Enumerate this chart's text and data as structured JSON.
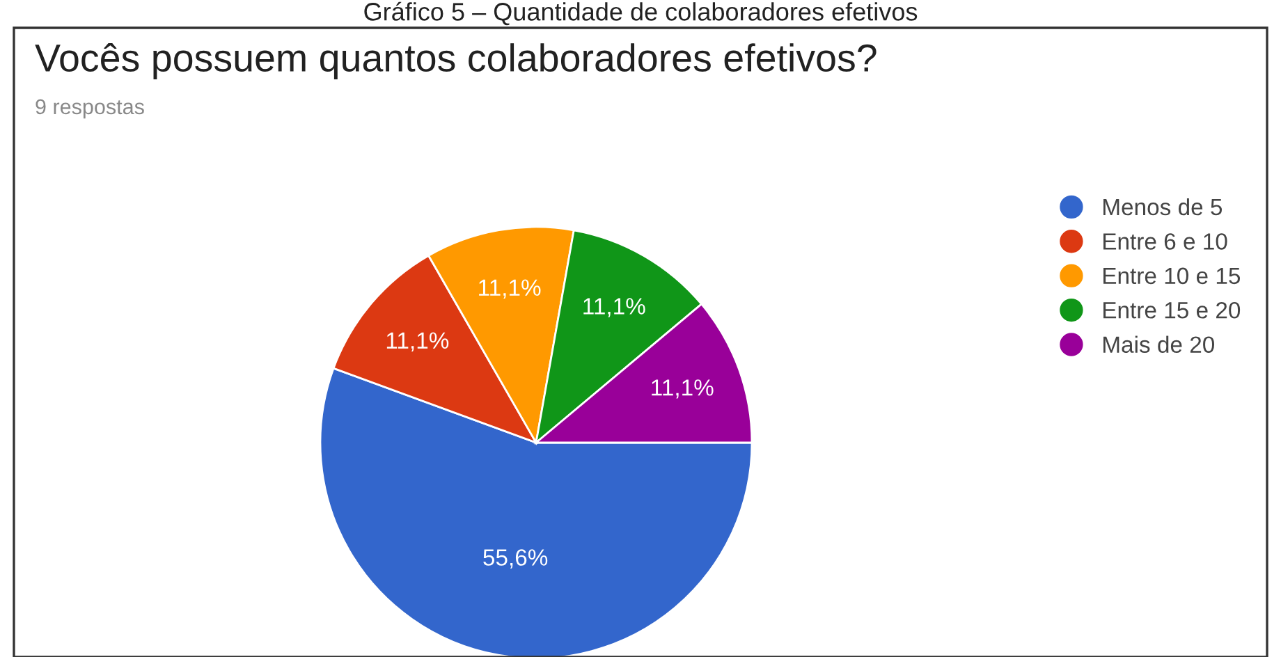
{
  "chart_data": {
    "type": "pie",
    "title": "Vocês possuem quantos colaboradores efetivos?",
    "subtitle": "9 respostas",
    "annotations": [
      "Gráfico 5 – Quantidade de colaboradores efetivos"
    ],
    "categories": [
      "Menos de 5",
      "Entre 6 e 10",
      "Entre 10 e 15",
      "Entre 15 e 20",
      "Mais de 20"
    ],
    "values": [
      55.6,
      11.1,
      11.1,
      11.1,
      11.1
    ],
    "value_labels": [
      "55,6%",
      "11,1%",
      "11,1%",
      "11,1%",
      "11,1%"
    ],
    "colors": [
      "#3366cc",
      "#dc3912",
      "#ff9900",
      "#109618",
      "#990099"
    ],
    "legend": "right"
  }
}
